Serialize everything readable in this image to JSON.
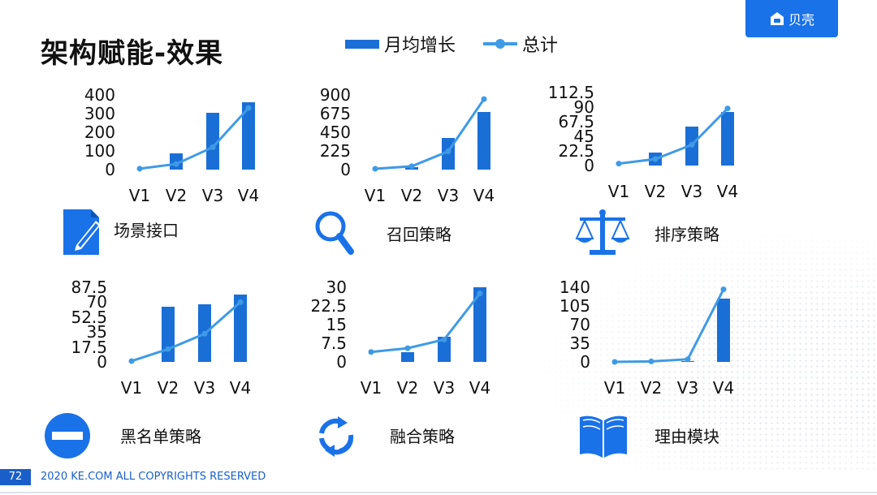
{
  "slide": {
    "title": "架构赋能-效果",
    "legend": {
      "bar_label": "月均增长",
      "line_label": "总计"
    },
    "logo_text": "贝壳",
    "page_number": "72",
    "copyright": "2020 KE.COM ALL COPYRIGHTS  RESERVED",
    "colors": {
      "bar": "#1a6fd6",
      "line": "#3f9ae6",
      "logo_bg": "#1a72e8"
    }
  },
  "features": [
    {
      "label": "场景接口",
      "icon": "document-pen-icon"
    },
    {
      "label": "召回策略",
      "icon": "magnifier-icon"
    },
    {
      "label": "排序策略",
      "icon": "balance-scale-icon"
    },
    {
      "label": "黑名单策略",
      "icon": "no-entry-icon"
    },
    {
      "label": "融合策略",
      "icon": "refresh-arrows-icon"
    },
    {
      "label": "理由模块",
      "icon": "open-book-icon"
    }
  ],
  "chart_data": [
    {
      "type": "bar",
      "categories": [
        "V1",
        "V2",
        "V3",
        "V4"
      ],
      "ylim": [
        0,
        400
      ],
      "yticks": [
        "400",
        "300",
        "200",
        "100",
        "0"
      ],
      "series": [
        {
          "type": "bar",
          "values": [
            0,
            85,
            305,
            360
          ]
        },
        {
          "type": "line",
          "values": [
            5,
            30,
            120,
            330
          ]
        }
      ]
    },
    {
      "type": "bar",
      "categories": [
        "V1",
        "V2",
        "V3",
        "V4"
      ],
      "ylim": [
        0,
        900
      ],
      "yticks": [
        "900",
        "675",
        "450",
        "225",
        "0"
      ],
      "series": [
        {
          "type": "bar",
          "values": [
            0,
            30,
            380,
            690
          ]
        },
        {
          "type": "line",
          "values": [
            10,
            40,
            220,
            850
          ]
        }
      ]
    },
    {
      "type": "bar",
      "categories": [
        "V1",
        "V2",
        "V3",
        "V4"
      ],
      "ylim": [
        0,
        112.5
      ],
      "yticks": [
        "112.5",
        "90",
        "67.5",
        "45",
        "22.5",
        "0"
      ],
      "series": [
        {
          "type": "bar",
          "values": [
            0,
            20,
            60,
            82
          ]
        },
        {
          "type": "line",
          "values": [
            3,
            10,
            32,
            88
          ]
        }
      ]
    },
    {
      "type": "bar",
      "categories": [
        "V1",
        "V2",
        "V3",
        "V4"
      ],
      "ylim": [
        0,
        87.5
      ],
      "yticks": [
        "87.5",
        "70",
        "52.5",
        "35",
        "17.5",
        "0"
      ],
      "series": [
        {
          "type": "bar",
          "values": [
            0,
            65,
            68,
            79
          ]
        },
        {
          "type": "line",
          "values": [
            1,
            15,
            33,
            70
          ]
        }
      ]
    },
    {
      "type": "bar",
      "categories": [
        "V1",
        "V2",
        "V3",
        "V4"
      ],
      "ylim": [
        0,
        30
      ],
      "yticks": [
        "30",
        "22.5",
        "15",
        "7.5",
        "0"
      ],
      "series": [
        {
          "type": "bar",
          "values": [
            0,
            4,
            10,
            30
          ]
        },
        {
          "type": "line",
          "values": [
            4,
            5.5,
            9,
            27.5
          ]
        }
      ]
    },
    {
      "type": "bar",
      "categories": [
        "V1",
        "V2",
        "V3",
        "V4"
      ],
      "ylim": [
        0,
        140
      ],
      "yticks": [
        "140",
        "105",
        "70",
        "35",
        "0"
      ],
      "series": [
        {
          "type": "bar",
          "values": [
            0,
            0,
            2,
            118
          ]
        },
        {
          "type": "line",
          "values": [
            0,
            1,
            5,
            136
          ]
        }
      ]
    }
  ]
}
